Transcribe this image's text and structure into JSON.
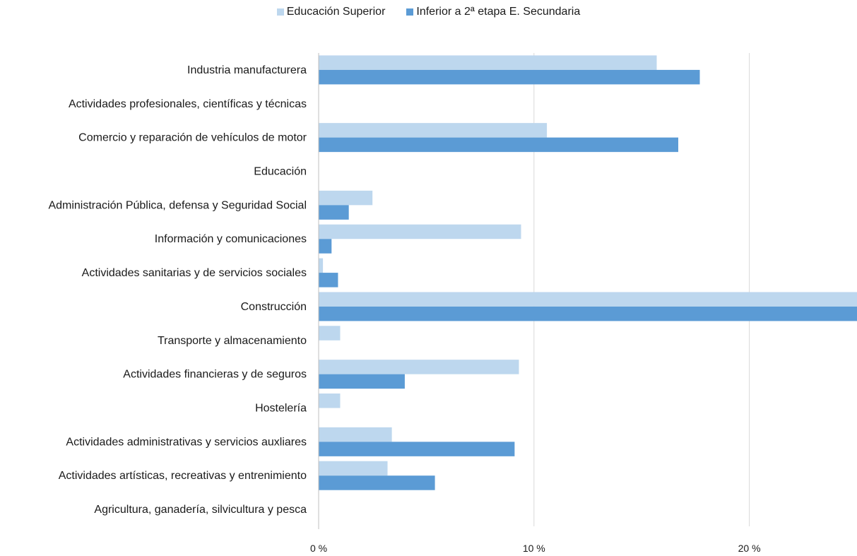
{
  "chart_data": {
    "type": "bar",
    "orientation": "horizontal",
    "categories": [
      "Industria manufacturera",
      "Actividades profesionales, científicas y técnicas",
      "Comercio y reparación de vehículos de motor",
      "Educación",
      "Administración Pública, defensa y Seguridad Social",
      "Información y comunicaciones",
      "Actividades sanitarias y de servicios sociales",
      "Construcción",
      "Transporte y almacenamiento",
      "Actividades financieras y de seguros",
      "Hostelería",
      "Actividades administrativas y servicios auxliares",
      "Actividades artísticas, recreativas y entrenimiento",
      "Agricultura, ganadería, silvicultura y pesca"
    ],
    "series": [
      {
        "name": "Educación Superior",
        "color": "#bdd7ee",
        "values": [
          15.7,
          0,
          10.6,
          0,
          2.5,
          9.4,
          0.2,
          25.0,
          1.0,
          9.3,
          1.0,
          3.4,
          3.2,
          0
        ]
      },
      {
        "name": "Inferior a 2ª etapa E. Secundaria",
        "color": "#5b9bd5",
        "values": [
          17.7,
          0,
          16.7,
          0,
          1.4,
          0.6,
          0.9,
          25.0,
          0,
          4.0,
          0,
          9.1,
          5.4,
          0
        ]
      }
    ],
    "xlim": [
      0,
      25
    ],
    "xticks": [
      0,
      10,
      20
    ],
    "xtick_labels": [
      "0 %",
      "10 %",
      "20 %"
    ],
    "grid": true,
    "legend_position": "top-center",
    "title": "",
    "xlabel": "",
    "ylabel": ""
  }
}
